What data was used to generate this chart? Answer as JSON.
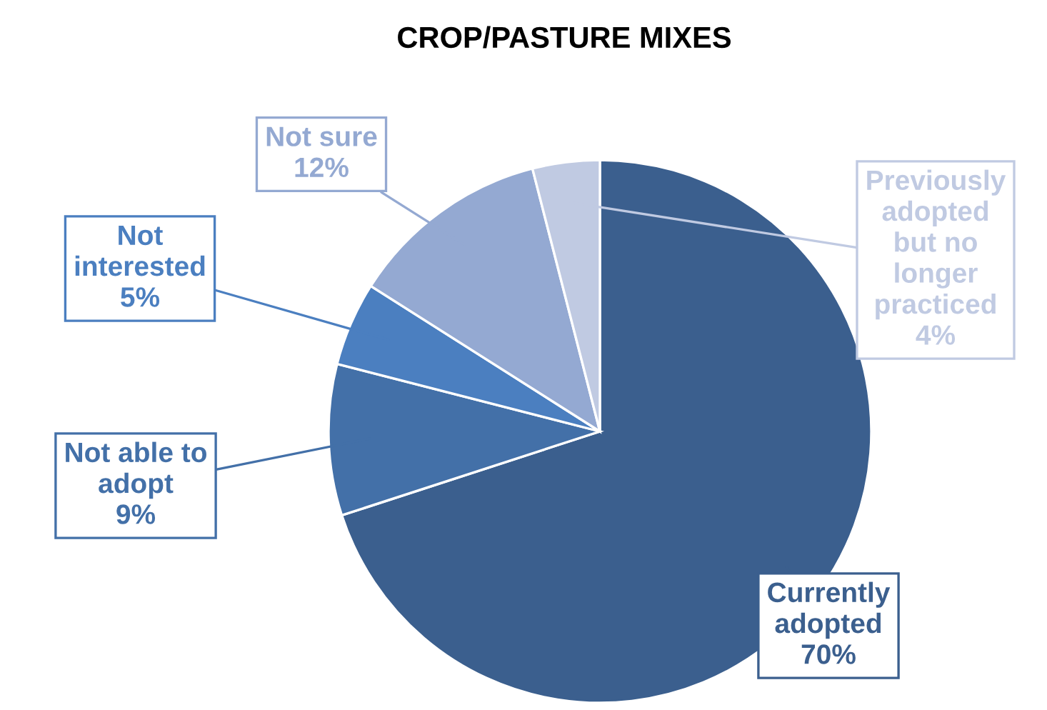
{
  "chart_data": {
    "type": "pie",
    "title": "CROP/PASTURE MIXES",
    "categories": [
      "Currently\nadopted",
      "Not able to\nadopt",
      "Not\ninterested",
      "Not sure",
      "Previously\nadopted\nbut no\nlonger\npracticed"
    ],
    "values": [
      70,
      9,
      5,
      12,
      4
    ],
    "colors": [
      "#3b5f8e",
      "#4370a8",
      "#4b7fc0",
      "#94a9d2",
      "#c0cae2"
    ],
    "value_labels": [
      "70%",
      "9%",
      "5%",
      "12%",
      "4%"
    ],
    "legend": false
  }
}
